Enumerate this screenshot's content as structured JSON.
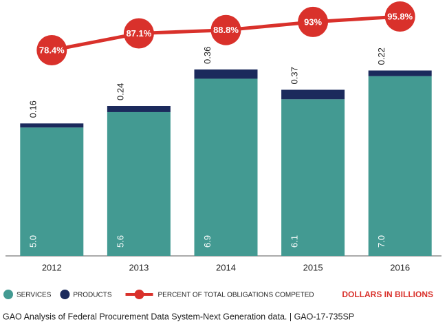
{
  "chart_data": {
    "type": "bar",
    "stacked": true,
    "categories": [
      "2012",
      "2013",
      "2014",
      "2015",
      "2016"
    ],
    "series": [
      {
        "name": "SERVICES",
        "color": "#439a92",
        "values": [
          5.0,
          5.6,
          6.9,
          6.1,
          7.0
        ],
        "value_labels": [
          "5.0",
          "5.6",
          "6.9",
          "6.1",
          "7.0"
        ]
      },
      {
        "name": "PRODUCTS",
        "color": "#1b2a5c",
        "values": [
          0.16,
          0.24,
          0.36,
          0.37,
          0.22
        ]
      },
      {
        "name": "PERCENT OF TOTAL OBLIGATIONS COMPETED",
        "type": "line",
        "axis": "y2",
        "color": "#d9312b",
        "values": [
          78.4,
          87.1,
          88.8,
          93,
          95.8
        ],
        "value_labels": [
          "78.4%",
          "87.1%",
          "88.8%",
          "93%",
          "95.8%"
        ]
      }
    ],
    "annotation": "DOLLARS IN BILLIONS",
    "source": "GAO Analysis of Federal Procurement Data System-Next Generation data. | GAO-17-735SP"
  }
}
